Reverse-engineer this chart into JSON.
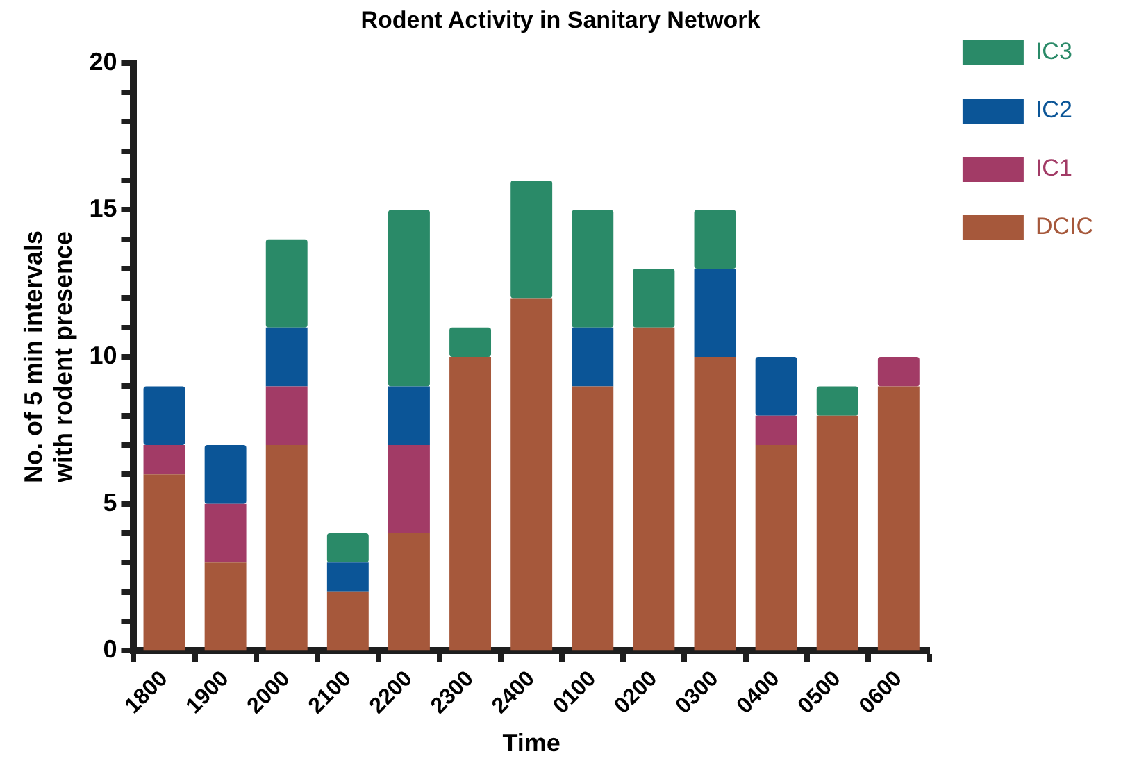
{
  "chart_data": {
    "type": "bar",
    "stacked": true,
    "title": "Rodent Activity in Sanitary Network",
    "xlabel": "Time",
    "ylabel": "No. of 5 min intervals\nwith rodent presence",
    "categories": [
      "1800",
      "1900",
      "2000",
      "2100",
      "2200",
      "2300",
      "2400",
      "0100",
      "0200",
      "0300",
      "0400",
      "0500",
      "0600"
    ],
    "series": [
      {
        "name": "DCIC",
        "color": "#a6583b",
        "values": [
          6,
          3,
          7,
          2,
          4,
          10,
          12,
          9,
          11,
          10,
          7,
          8,
          9
        ]
      },
      {
        "name": "IC1",
        "color": "#a23b66",
        "values": [
          1,
          2,
          2,
          0,
          3,
          0,
          0,
          0,
          0,
          0,
          1,
          0,
          1
        ]
      },
      {
        "name": "IC2",
        "color": "#0b5597",
        "values": [
          2,
          2,
          2,
          1,
          2,
          0,
          0,
          2,
          0,
          3,
          2,
          0,
          0
        ]
      },
      {
        "name": "IC3",
        "color": "#2a8a68",
        "values": [
          0,
          0,
          3,
          1,
          6,
          1,
          4,
          4,
          2,
          2,
          0,
          1,
          0
        ]
      }
    ],
    "ylim": [
      0,
      20
    ],
    "yticks": [
      0,
      {
        "value": 1,
        "label": null
      },
      {
        "value": 2,
        "label": null
      },
      {
        "value": 3,
        "label": null
      },
      {
        "value": 4,
        "label": null
      },
      5,
      {
        "value": 6,
        "label": null
      },
      {
        "value": 7,
        "label": null
      },
      {
        "value": 8,
        "label": null
      },
      {
        "value": 9,
        "label": null
      },
      10,
      {
        "value": 11,
        "label": null
      },
      {
        "value": 12,
        "label": null
      },
      {
        "value": 13,
        "label": null
      },
      {
        "value": 14,
        "label": null
      },
      15,
      {
        "value": 16,
        "label": null
      },
      {
        "value": 17,
        "label": null
      },
      {
        "value": 18,
        "label": null
      },
      {
        "value": 19,
        "label": null
      },
      20
    ],
    "grid": false,
    "legend": "right"
  }
}
